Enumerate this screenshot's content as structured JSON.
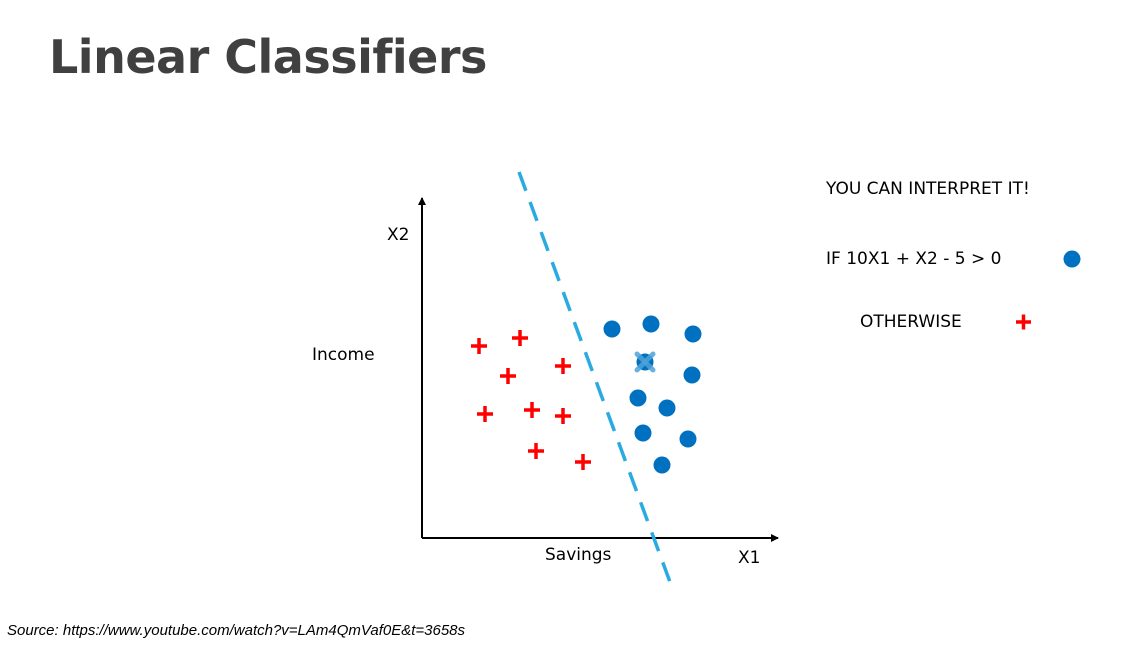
{
  "slide": {
    "title": "Linear Classifiers",
    "source": "Source: https://www.youtube.com/watch?v=LAm4QmVaf0E&t=3658s"
  },
  "axes": {
    "y_label": "X2",
    "y_description": "Income",
    "x_label": "X1",
    "x_description": "Savings"
  },
  "rule": {
    "heading": "YOU CAN INTERPRET IT!",
    "condition": "IF 10X1 + X2 - 5 > 0",
    "otherwise": "OTHERWISE"
  },
  "colors": {
    "circle": "#0070c0",
    "plus": "#ff0000",
    "boundary": "#29abe2"
  },
  "icons": {
    "circle_class": "filled-circle-icon",
    "plus_class": "red-plus-icon"
  }
}
